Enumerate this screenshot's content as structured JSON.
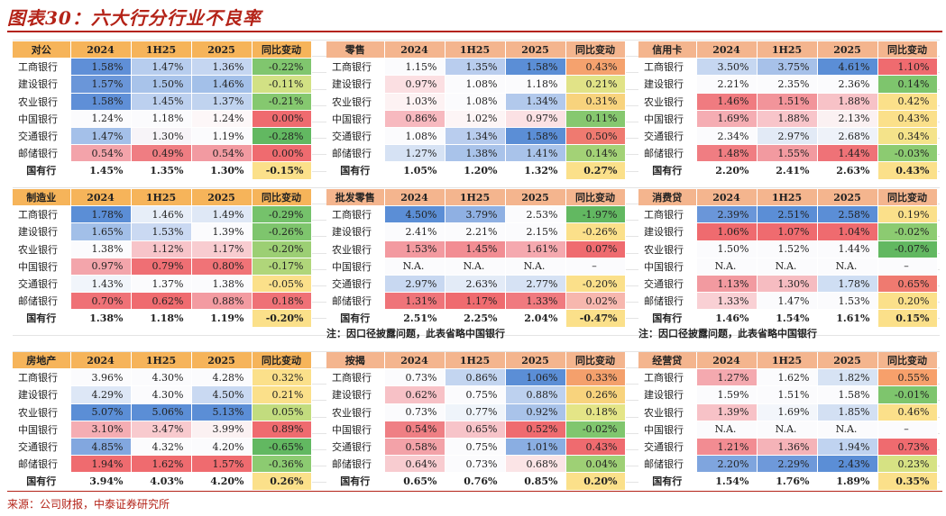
{
  "title": "图表30：六大行分行业不良率",
  "source": "来源：公司财报，中泰证券研究所",
  "columns": [
    "2024",
    "1H25",
    "2025",
    "同比变动"
  ],
  "notes": [
    "注：因口径披露问题，此表省略中国银行",
    "注：因口径披露问题，此表省略中国银行"
  ],
  "colors": {
    "header_bg": [
      "#f6b45a",
      "#f4b58e",
      "#f4b58e"
    ],
    "blue_strong": "#5b8ed6",
    "blue_mid": "#a7c3ea",
    "white": "#fbfbfd",
    "pink": "#f6c3c9",
    "red_strong": "#ef6b6f",
    "green": "#7ec56d",
    "yellow": "#fbe08a",
    "title_red": "#b42318"
  },
  "tables": [
    {
      "name": "对公",
      "rows": [
        {
          "bank": "工商银行",
          "v": [
            "1.58%",
            "1.47%",
            "1.36%",
            "-0.22%"
          ],
          "c": [
            "#5f8fd7",
            "#b7cdee",
            "#c5d6f1",
            "#80c66e"
          ]
        },
        {
          "bank": "建设银行",
          "v": [
            "1.57%",
            "1.50%",
            "1.46%",
            "-0.11%"
          ],
          "c": [
            "#6a96d9",
            "#a8c3ea",
            "#a3c0e9",
            "#d2e184"
          ]
        },
        {
          "bank": "农业银行",
          "v": [
            "1.58%",
            "1.45%",
            "1.37%",
            "-0.21%"
          ],
          "c": [
            "#5f8fd7",
            "#bcd0ef",
            "#c0d3ef",
            "#85c86f"
          ]
        },
        {
          "bank": "中国银行",
          "v": [
            "1.24%",
            "1.18%",
            "1.24%",
            "0.00%"
          ],
          "c": [
            "#fbfbfd",
            "#fbfbfd",
            "#fdf7f8",
            "#ef6b6f"
          ]
        },
        {
          "bank": "交通银行",
          "v": [
            "1.47%",
            "1.30%",
            "1.19%",
            "-0.28%"
          ],
          "c": [
            "#a4c0e9",
            "#f7f4f8",
            "#fbfbfd",
            "#62b861"
          ]
        },
        {
          "bank": "邮储银行",
          "v": [
            "0.54%",
            "0.49%",
            "0.54%",
            "0.00%"
          ],
          "c": [
            "#f3a3aa",
            "#ef7d82",
            "#f29aa1",
            "#ef6b6f"
          ]
        }
      ],
      "total": {
        "bank": "国有行",
        "v": [
          "1.45%",
          "1.35%",
          "1.30%",
          "-0.15%"
        ]
      }
    },
    {
      "name": "零售",
      "rows": [
        {
          "bank": "工商银行",
          "v": [
            "1.15%",
            "1.35%",
            "1.58%",
            "0.43%"
          ],
          "c": [
            "#fbfbfd",
            "#b9cdee",
            "#5b8ed6",
            "#f5a26e"
          ]
        },
        {
          "bank": "建设银行",
          "v": [
            "0.97%",
            "1.08%",
            "1.18%",
            "0.21%"
          ],
          "c": [
            "#fbdfe2",
            "#fbfbfd",
            "#fbfbfd",
            "#e1e387"
          ]
        },
        {
          "bank": "农业银行",
          "v": [
            "1.03%",
            "1.08%",
            "1.34%",
            "0.31%"
          ],
          "c": [
            "#fdf2f3",
            "#fbfbfd",
            "#b2c9ec",
            "#f8d37d"
          ]
        },
        {
          "bank": "中国银行",
          "v": [
            "0.86%",
            "1.02%",
            "0.97%",
            "0.11%"
          ],
          "c": [
            "#f7b9bf",
            "#fdf5f6",
            "#fbe1e4",
            "#86c86f"
          ]
        },
        {
          "bank": "交通银行",
          "v": [
            "1.08%",
            "1.34%",
            "1.58%",
            "0.50%"
          ],
          "c": [
            "#fbfbfd",
            "#b9cdee",
            "#5b8ed6",
            "#ef7a70"
          ]
        },
        {
          "bank": "邮储银行",
          "v": [
            "1.27%",
            "1.38%",
            "1.41%",
            "0.14%"
          ],
          "c": [
            "#d6e2f4",
            "#a9c3ea",
            "#a9c3ea",
            "#a3d276"
          ]
        }
      ],
      "total": {
        "bank": "国有行",
        "v": [
          "1.05%",
          "1.20%",
          "1.32%",
          "0.27%"
        ]
      }
    },
    {
      "name": "信用卡",
      "rows": [
        {
          "bank": "工商银行",
          "v": [
            "3.50%",
            "3.75%",
            "4.61%",
            "1.10%"
          ],
          "c": [
            "#c6d7f1",
            "#a7c1e9",
            "#5b8ed6",
            "#ef6b6f"
          ]
        },
        {
          "bank": "建设银行",
          "v": [
            "2.21%",
            "2.35%",
            "2.36%",
            "0.14%"
          ],
          "c": [
            "#fbfbfd",
            "#fbfbfd",
            "#fbfbfd",
            "#7ec56d"
          ]
        },
        {
          "bank": "农业银行",
          "v": [
            "1.46%",
            "1.51%",
            "1.88%",
            "0.42%"
          ],
          "c": [
            "#f07b80",
            "#f2949a",
            "#f7c2c7",
            "#fbe08a"
          ]
        },
        {
          "bank": "中国银行",
          "v": [
            "1.69%",
            "1.88%",
            "2.13%",
            "0.43%"
          ],
          "c": [
            "#f5adb3",
            "#f8c5ca",
            "#fbf1f2",
            "#fbe08a"
          ]
        },
        {
          "bank": "交通银行",
          "v": [
            "2.34%",
            "2.97%",
            "2.68%",
            "0.34%"
          ],
          "c": [
            "#fbfbfd",
            "#e2eaf6",
            "#eef2f9",
            "#f4e38a"
          ]
        },
        {
          "bank": "邮储银行",
          "v": [
            "1.48%",
            "1.55%",
            "1.44%",
            "-0.03%"
          ],
          "c": [
            "#f07d82",
            "#f29aa0",
            "#ef7277",
            "#8ccb71"
          ]
        }
      ],
      "total": {
        "bank": "国有行",
        "v": [
          "2.20%",
          "2.41%",
          "2.63%",
          "0.43%"
        ]
      }
    },
    {
      "name": "制造业",
      "rows": [
        {
          "bank": "工商银行",
          "v": [
            "1.78%",
            "1.46%",
            "1.49%",
            "-0.29%"
          ],
          "c": [
            "#5b8ed6",
            "#e7eef8",
            "#dfe8f6",
            "#75c26b"
          ]
        },
        {
          "bank": "建设银行",
          "v": [
            "1.65%",
            "1.53%",
            "1.39%",
            "-0.26%"
          ],
          "c": [
            "#a2bfe8",
            "#cad9f2",
            "#fbfbfd",
            "#7ec56d"
          ]
        },
        {
          "bank": "农业银行",
          "v": [
            "1.38%",
            "1.12%",
            "1.17%",
            "-0.20%"
          ],
          "c": [
            "#fbfbfd",
            "#f7c4c9",
            "#f8ccd0",
            "#9ccf74"
          ]
        },
        {
          "bank": "中国银行",
          "v": [
            "0.97%",
            "0.79%",
            "0.80%",
            "-0.17%"
          ],
          "c": [
            "#f3a5ab",
            "#ef6f74",
            "#f07377",
            "#b0d67a"
          ]
        },
        {
          "bank": "交通银行",
          "v": [
            "1.43%",
            "1.37%",
            "1.38%",
            "-0.05%"
          ],
          "c": [
            "#f1f5fb",
            "#fbfbfd",
            "#fbfbfd",
            "#fbe08a"
          ]
        },
        {
          "bank": "邮储银行",
          "v": [
            "0.70%",
            "0.62%",
            "0.88%",
            "0.18%"
          ],
          "c": [
            "#ef7176",
            "#ef6b6f",
            "#f39ba1",
            "#ef7176"
          ]
        }
      ],
      "total": {
        "bank": "国有行",
        "v": [
          "1.38%",
          "1.18%",
          "1.19%",
          "-0.20%"
        ]
      }
    },
    {
      "name": "批发零售",
      "rows": [
        {
          "bank": "工商银行",
          "v": [
            "4.50%",
            "3.79%",
            "2.53%",
            "-1.97%"
          ],
          "c": [
            "#5b8ed6",
            "#8fb0e3",
            "#fbfbfd",
            "#62b861"
          ]
        },
        {
          "bank": "建设银行",
          "v": [
            "2.41%",
            "2.21%",
            "2.15%",
            "-0.26%"
          ],
          "c": [
            "#fbfbfd",
            "#fbfbfd",
            "#fbfbfd",
            "#fbe08a"
          ]
        },
        {
          "bank": "农业银行",
          "v": [
            "1.53%",
            "1.45%",
            "1.61%",
            "0.07%"
          ],
          "c": [
            "#f39aa0",
            "#f28d93",
            "#f5a9af",
            "#ef6b6f"
          ]
        },
        {
          "bank": "中国银行",
          "v": [
            "N.A.",
            "N.A.",
            "N.A.",
            "–"
          ],
          "c": [
            "#fbfbfd",
            "#fbfbfd",
            "#fbfbfd",
            "#fbfbfd"
          ]
        },
        {
          "bank": "交通银行",
          "v": [
            "2.97%",
            "2.63%",
            "2.77%",
            "-0.20%"
          ],
          "c": [
            "#c8d8f1",
            "#e3ebf7",
            "#d6e2f4",
            "#fbe08a"
          ]
        },
        {
          "bank": "邮储银行",
          "v": [
            "1.31%",
            "1.17%",
            "1.33%",
            "0.02%"
          ],
          "c": [
            "#ef7479",
            "#ef6b6f",
            "#f07a7f",
            "#f7b7ae"
          ]
        }
      ],
      "total": {
        "bank": "国有行",
        "v": [
          "2.51%",
          "2.25%",
          "2.04%",
          "-0.47%"
        ]
      }
    },
    {
      "name": "消费贷",
      "rows": [
        {
          "bank": "工商银行",
          "v": [
            "2.39%",
            "2.51%",
            "2.58%",
            "0.19%"
          ],
          "c": [
            "#6a96d9",
            "#5b8ed6",
            "#5b8ed6",
            "#fbe08a"
          ]
        },
        {
          "bank": "建设银行",
          "v": [
            "1.06%",
            "1.07%",
            "1.04%",
            "-0.02%"
          ],
          "c": [
            "#ef6b6f",
            "#ef6b6f",
            "#ef6b6f",
            "#8ccb71"
          ]
        },
        {
          "bank": "农业银行",
          "v": [
            "1.50%",
            "1.52%",
            "1.44%",
            "-0.07%"
          ],
          "c": [
            "#fbfbfd",
            "#fbfbfd",
            "#fbfbfd",
            "#62b861"
          ]
        },
        {
          "bank": "中国银行",
          "v": [
            "N.A.",
            "N.A.",
            "N.A.",
            "–"
          ],
          "c": [
            "#fbfbfd",
            "#fbfbfd",
            "#fbfbfd",
            "#fbfbfd"
          ]
        },
        {
          "bank": "交通银行",
          "v": [
            "1.13%",
            "1.30%",
            "1.78%",
            "0.65%"
          ],
          "c": [
            "#f29aa0",
            "#f6bcc1",
            "#cfdef3",
            "#ef7a70"
          ]
        },
        {
          "bank": "邮储银行",
          "v": [
            "1.33%",
            "1.47%",
            "1.53%",
            "0.20%"
          ],
          "c": [
            "#f9d0d4",
            "#fbfbfd",
            "#fbfbfd",
            "#fbe08a"
          ]
        }
      ],
      "total": {
        "bank": "国有行",
        "v": [
          "1.46%",
          "1.54%",
          "1.61%",
          "0.15%"
        ]
      }
    },
    {
      "name": "房地产",
      "rows": [
        {
          "bank": "工商银行",
          "v": [
            "3.96%",
            "4.30%",
            "4.28%",
            "0.32%"
          ],
          "c": [
            "#fbfbfd",
            "#fbfbfd",
            "#fbfbfd",
            "#fbe08a"
          ]
        },
        {
          "bank": "建设银行",
          "v": [
            "4.29%",
            "4.30%",
            "4.50%",
            "0.21%"
          ],
          "c": [
            "#dde7f6",
            "#fbfbfd",
            "#c9d9f2",
            "#fbe08a"
          ]
        },
        {
          "bank": "农业银行",
          "v": [
            "5.07%",
            "5.06%",
            "5.13%",
            "0.05%"
          ],
          "c": [
            "#5b8ed6",
            "#5b8ed6",
            "#5b8ed6",
            "#c2dc7e"
          ]
        },
        {
          "bank": "中国银行",
          "v": [
            "3.10%",
            "3.47%",
            "3.99%",
            "0.89%"
          ],
          "c": [
            "#f5adb3",
            "#f8cace",
            "#fbf1f2",
            "#ef6b6f"
          ]
        },
        {
          "bank": "交通银行",
          "v": [
            "4.85%",
            "4.32%",
            "4.20%",
            "-0.65%"
          ],
          "c": [
            "#82a7df",
            "#fbfbfd",
            "#fbfbfd",
            "#62b861"
          ]
        },
        {
          "bank": "邮储银行",
          "v": [
            "1.94%",
            "1.62%",
            "1.57%",
            "-0.36%"
          ],
          "c": [
            "#ef6b6f",
            "#ef6b6f",
            "#ef6b6f",
            "#8ccb71"
          ]
        }
      ],
      "total": {
        "bank": "国有行",
        "v": [
          "3.94%",
          "4.03%",
          "4.20%",
          "0.26%"
        ]
      }
    },
    {
      "name": "按揭",
      "rows": [
        {
          "bank": "工商银行",
          "v": [
            "0.73%",
            "0.86%",
            "1.06%",
            "0.33%"
          ],
          "c": [
            "#fbfbfd",
            "#c3d5f0",
            "#5b8ed6",
            "#f4a06c"
          ]
        },
        {
          "bank": "建设银行",
          "v": [
            "0.62%",
            "0.75%",
            "0.88%",
            "0.26%"
          ],
          "c": [
            "#f7c1c6",
            "#fbfbfd",
            "#bdd1ef",
            "#f8d37d"
          ]
        },
        {
          "bank": "农业银行",
          "v": [
            "0.73%",
            "0.77%",
            "0.92%",
            "0.18%"
          ],
          "c": [
            "#fbfbfd",
            "#eff4fa",
            "#a9c3ea",
            "#e4e587"
          ]
        },
        {
          "bank": "中国银行",
          "v": [
            "0.54%",
            "0.65%",
            "0.52%",
            "-0.02%"
          ],
          "c": [
            "#ef7f84",
            "#f7c4c9",
            "#ef6b6f",
            "#80c66e"
          ]
        },
        {
          "bank": "交通银行",
          "v": [
            "0.58%",
            "0.75%",
            "1.01%",
            "0.43%"
          ],
          "c": [
            "#f3a2a8",
            "#fbfbfd",
            "#8aaee2",
            "#ef6b6f"
          ]
        },
        {
          "bank": "邮储银行",
          "v": [
            "0.64%",
            "0.73%",
            "0.68%",
            "0.04%"
          ],
          "c": [
            "#f8ccd0",
            "#fbfbfd",
            "#fbe4e6",
            "#9ed075"
          ]
        }
      ],
      "total": {
        "bank": "国有行",
        "v": [
          "0.65%",
          "0.76%",
          "0.85%",
          "0.20%"
        ]
      }
    },
    {
      "name": "经营贷",
      "rows": [
        {
          "bank": "工商银行",
          "v": [
            "1.27%",
            "1.62%",
            "1.82%",
            "0.55%"
          ],
          "c": [
            "#f4a9af",
            "#fbfbfd",
            "#d7e3f4",
            "#f7a06b"
          ]
        },
        {
          "bank": "建设银行",
          "v": [
            "1.59%",
            "1.51%",
            "1.58%",
            "-0.01%"
          ],
          "c": [
            "#fbfbfd",
            "#fbfbfd",
            "#fbfbfd",
            "#7ec56d"
          ]
        },
        {
          "bank": "农业银行",
          "v": [
            "1.39%",
            "1.69%",
            "1.85%",
            "0.46%"
          ],
          "c": [
            "#f7c2c7",
            "#f3f6fb",
            "#d3e0f3",
            "#fbe08a"
          ]
        },
        {
          "bank": "中国银行",
          "v": [
            "N.A.",
            "N.A.",
            "N.A.",
            "–"
          ],
          "c": [
            "#fbfbfd",
            "#fbfbfd",
            "#fbfbfd",
            "#fbfbfd"
          ]
        },
        {
          "bank": "交通银行",
          "v": [
            "1.21%",
            "1.36%",
            "1.94%",
            "0.73%"
          ],
          "c": [
            "#f28c92",
            "#f5b3b8",
            "#c0d3f0",
            "#ef6b6f"
          ]
        },
        {
          "bank": "邮储银行",
          "v": [
            "2.20%",
            "2.29%",
            "2.43%",
            "0.23%"
          ],
          "c": [
            "#7fa5de",
            "#6e99da",
            "#5b8ed6",
            "#d6e283"
          ]
        }
      ],
      "total": {
        "bank": "国有行",
        "v": [
          "1.54%",
          "1.76%",
          "1.89%",
          "0.35%"
        ]
      }
    }
  ]
}
